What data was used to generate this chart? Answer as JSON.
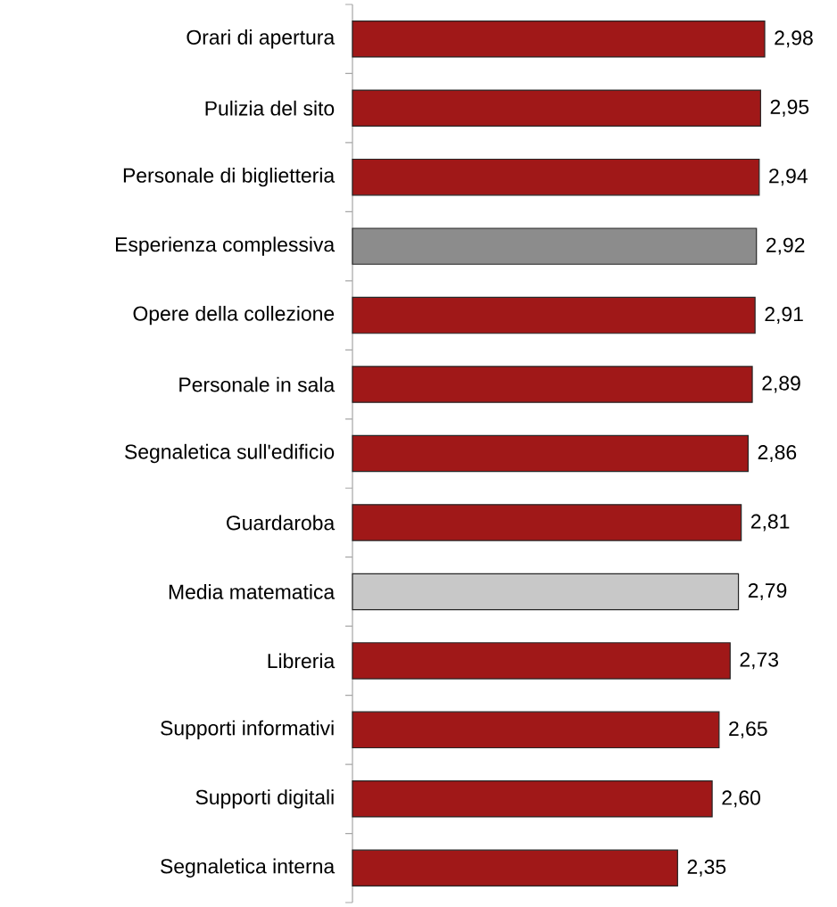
{
  "chart_data": {
    "type": "bar",
    "orientation": "horizontal",
    "categories": [
      "Orari di apertura",
      "Pulizia del sito",
      "Personale di biglietteria",
      "Esperienza complessiva",
      "Opere della collezione",
      "Personale in sala",
      "Segnaletica sull'edificio",
      "Guardaroba",
      "Media matematica",
      "Libreria",
      "Supporti informativi",
      "Supporti digitali",
      "Segnaletica interna"
    ],
    "values": [
      2.98,
      2.95,
      2.94,
      2.92,
      2.91,
      2.89,
      2.86,
      2.81,
      2.79,
      2.73,
      2.65,
      2.6,
      2.35
    ],
    "value_labels": [
      "2,98",
      "2,95",
      "2,94",
      "2,92",
      "2,91",
      "2,89",
      "2,86",
      "2,81",
      "2,79",
      "2,73",
      "2,65",
      "2,60",
      "2,35"
    ],
    "colors": [
      "#a01818",
      "#a01818",
      "#a01818",
      "#8c8c8c",
      "#a01818",
      "#a01818",
      "#a01818",
      "#a01818",
      "#c8c8c8",
      "#a01818",
      "#a01818",
      "#a01818",
      "#a01818"
    ]
  }
}
